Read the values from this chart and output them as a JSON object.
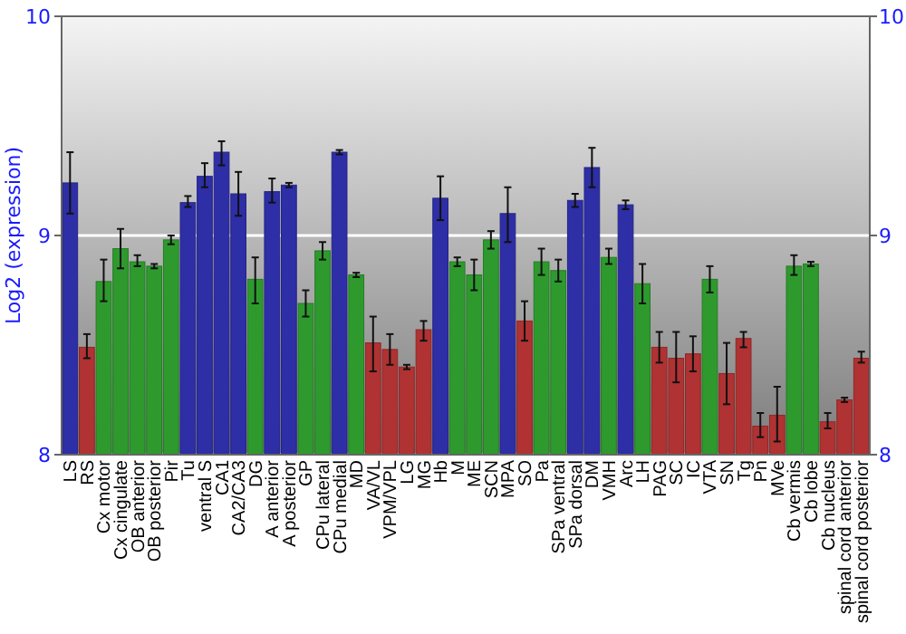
{
  "chart_data": {
    "type": "bar",
    "ylabel": "Log2 (expression)",
    "categories": [
      "LS",
      "RS",
      "Cx motor",
      "Cx cingulate",
      "OB anterior",
      "OB posterior",
      "Pir",
      "Tu",
      "ventral S",
      "CA1",
      "CA2/CA3",
      "DG",
      "A anterior",
      "A posterior",
      "GP",
      "CPu lateral",
      "CPu medial",
      "MD",
      "VA/VL",
      "VPM/VPL",
      "LG",
      "MG",
      "Hb",
      "M",
      "ME",
      "SCN",
      "MPA",
      "SO",
      "Pa",
      "SPa ventral",
      "SPa dorsal",
      "DM",
      "VMH",
      "Arc",
      "LH",
      "PAG",
      "SC",
      "IC",
      "VTA",
      "SN",
      "Tg",
      "Pn",
      "MVe",
      "Cb vermis",
      "Cb lobe",
      "Cb nucleus",
      "spinal cord anterior",
      "spinal cord posterior"
    ],
    "values": [
      9.24,
      8.49,
      8.79,
      8.94,
      8.88,
      8.86,
      8.98,
      9.15,
      9.27,
      9.38,
      9.19,
      8.8,
      9.2,
      9.23,
      8.69,
      8.93,
      9.38,
      8.82,
      8.51,
      8.48,
      8.4,
      8.57,
      9.17,
      8.88,
      8.82,
      8.98,
      9.1,
      8.61,
      8.88,
      8.84,
      9.16,
      9.31,
      8.9,
      9.14,
      8.78,
      8.49,
      8.44,
      8.46,
      8.8,
      8.37,
      8.53,
      8.13,
      8.18,
      8.86,
      8.87,
      8.15,
      8.25,
      8.44
    ],
    "errors": [
      [
        9.1,
        9.38
      ],
      [
        8.44,
        8.55
      ],
      [
        8.7,
        8.89
      ],
      [
        8.85,
        9.03
      ],
      [
        8.86,
        8.91
      ],
      [
        8.85,
        8.87
      ],
      [
        8.96,
        9
      ],
      [
        9.13,
        9.18
      ],
      [
        9.22,
        9.33
      ],
      [
        9.32,
        9.43
      ],
      [
        9.09,
        9.29
      ],
      [
        8.69,
        8.9
      ],
      [
        9.15,
        9.26
      ],
      [
        9.22,
        9.24
      ],
      [
        8.63,
        8.75
      ],
      [
        8.89,
        8.97
      ],
      [
        9.37,
        9.39
      ],
      [
        8.81,
        8.83
      ],
      [
        8.38,
        8.63
      ],
      [
        8.41,
        8.55
      ],
      [
        8.39,
        8.41
      ],
      [
        8.52,
        8.61
      ],
      [
        9.07,
        9.27
      ],
      [
        8.86,
        8.9
      ],
      [
        8.75,
        8.89
      ],
      [
        8.94,
        9.02
      ],
      [
        8.97,
        9.22
      ],
      [
        8.52,
        8.7
      ],
      [
        8.82,
        8.94
      ],
      [
        8.79,
        8.89
      ],
      [
        9.13,
        9.19
      ],
      [
        9.22,
        9.4
      ],
      [
        8.87,
        8.94
      ],
      [
        9.12,
        9.16
      ],
      [
        8.69,
        8.87
      ],
      [
        8.42,
        8.56
      ],
      [
        8.33,
        8.56
      ],
      [
        8.38,
        8.54
      ],
      [
        8.74,
        8.86
      ],
      [
        8.23,
        8.51
      ],
      [
        8.49,
        8.56
      ],
      [
        8.08,
        8.19
      ],
      [
        8.06,
        8.31
      ],
      [
        8.82,
        8.91
      ],
      [
        8.86,
        8.88
      ],
      [
        8.12,
        8.19
      ],
      [
        8.24,
        8.26
      ],
      [
        8.42,
        8.47
      ]
    ],
    "colors": [
      "#2e2ea6",
      "#b03232",
      "#2e9a2e",
      "#2e9a2e",
      "#2e9a2e",
      "#2e9a2e",
      "#2e9a2e",
      "#2e2ea6",
      "#2e2ea6",
      "#2e2ea6",
      "#2e2ea6",
      "#2e9a2e",
      "#2e2ea6",
      "#2e2ea6",
      "#2e9a2e",
      "#2e9a2e",
      "#2e2ea6",
      "#2e9a2e",
      "#b03232",
      "#b03232",
      "#b03232",
      "#b03232",
      "#2e2ea6",
      "#2e9a2e",
      "#2e9a2e",
      "#2e9a2e",
      "#2e2ea6",
      "#b03232",
      "#2e9a2e",
      "#2e9a2e",
      "#2e2ea6",
      "#2e2ea6",
      "#2e9a2e",
      "#2e2ea6",
      "#2e9a2e",
      "#b03232",
      "#b03232",
      "#b03232",
      "#2e9a2e",
      "#b03232",
      "#b03232",
      "#b03232",
      "#b03232",
      "#2e9a2e",
      "#2e9a2e",
      "#b03232",
      "#b03232",
      "#b03232"
    ],
    "ylim": [
      8,
      10
    ],
    "yticks": [
      8,
      9,
      10
    ],
    "y2lim": [
      8,
      10
    ],
    "y2ticks": [
      8,
      9,
      10
    ],
    "grid": "y"
  }
}
